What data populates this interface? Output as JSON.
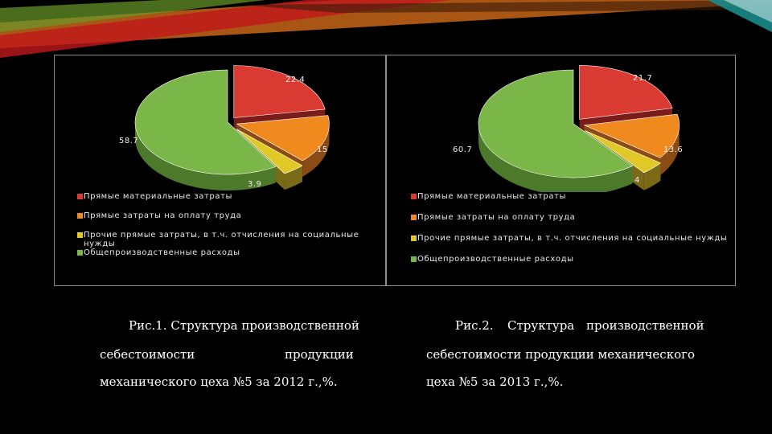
{
  "colors": {
    "background": "#000000",
    "slide_accent_red": "#c0181c",
    "slide_accent_orange": "#e2731c",
    "slide_accent_green": "#6a9a2a",
    "slide_accent_teal": "#1a8a8a",
    "slice_colors": [
      "#d93a32",
      "#f08a1e",
      "#e0c826",
      "#7ab648"
    ],
    "slice_side_colors": [
      "#7a1c1a",
      "#8a4c14",
      "#7a6a18",
      "#4c7a2a"
    ]
  },
  "chart_data": [
    {
      "type": "pie",
      "style": "3d-exploded",
      "values": [
        22.4,
        15,
        3.9,
        58.7
      ],
      "data_labels": [
        "22.4",
        "15",
        "3.9",
        "58.7"
      ],
      "legend": {
        "placement": "bottom",
        "entries": [
          "Прямые материальные затраты",
          "Прямые затраты на оплату труда",
          "Прочие прямые затраты, в т.ч. отчисления на социальные нужды",
          "Общепроизводственные расходы"
        ]
      }
    },
    {
      "type": "pie",
      "style": "3d-exploded",
      "values": [
        21.7,
        13.6,
        4,
        60.7
      ],
      "data_labels": [
        "21.7",
        "13.6",
        "4",
        "60.7"
      ],
      "legend": {
        "placement": "bottom",
        "entries": [
          "Прямые материальные затраты",
          "Прямые затраты на оплату труда",
          "Прочие прямые затраты, в т.ч. отчисления на социальные нужды",
          "Общепроизводственные расходы"
        ]
      }
    }
  ],
  "captions": [
    {
      "lines": [
        "Рис.1. Структура производственной",
        "себестоимости",
        "продукции",
        "механического цеха №5 за 2012 г.,%."
      ]
    },
    {
      "lines": [
        "Рис.2.",
        "Структура",
        "производственной",
        "себестоимости продукции механического",
        "цеха №5 за 2013 г.,%."
      ]
    }
  ]
}
